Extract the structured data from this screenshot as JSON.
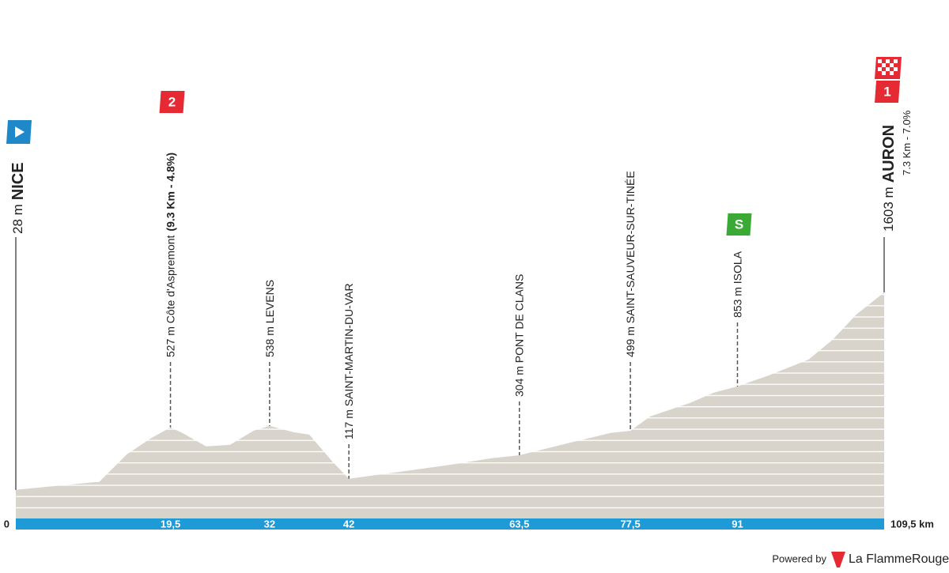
{
  "chart_data": {
    "type": "area",
    "x": [
      0,
      10,
      10.5,
      14,
      17,
      19.5,
      21,
      24,
      27,
      30,
      32,
      35,
      37,
      40,
      42,
      50,
      55,
      60,
      63.5,
      70,
      75,
      77.5,
      80,
      85,
      88,
      91,
      95,
      100,
      103,
      106,
      109.5
    ],
    "values": [
      28,
      90,
      90,
      311,
      438,
      527,
      482,
      375,
      387,
      500,
      538,
      488,
      469,
      248,
      117,
      186,
      230,
      280,
      304,
      406,
      482,
      499,
      614,
      721,
      803,
      853,
      943,
      1068,
      1225,
      1427,
      1603
    ],
    "color": "#d9d4cb",
    "xlim": [
      0,
      109.5
    ],
    "ylim": [
      -200,
      1650
    ],
    "xticks": [
      0,
      {
        "value": 19.5,
        "label": "19,5"
      },
      32,
      42,
      {
        "value": 63.5,
        "label": "63,5"
      },
      {
        "value": 77.5,
        "label": "77,5"
      },
      91,
      {
        "value": 109.5,
        "label": "109,5 km"
      }
    ],
    "start": {
      "label": "28 m",
      "name": "NICE"
    },
    "finish": {
      "label": "1603 m",
      "name": "AURON",
      "climb": "7.3 Km - 7.0%",
      "badge": "1"
    },
    "waypoints": [
      {
        "label": "527 m Côte d'Aspremont",
        "climb": "(9.3 Km - 4.8%)",
        "badge": "2"
      },
      {
        "label": "538 m LEVENS"
      },
      {
        "label": "117 m SAINT-MARTIN-DU-VAR"
      },
      {
        "label": "304 m PONT DE CLANS"
      },
      {
        "label": "499 m SAINT-SAUVEUR-SUR-TINÉE"
      },
      {
        "label": "853 m ISOLA",
        "badge": "S"
      }
    ]
  },
  "footer": {
    "powered_by": "Powered by",
    "brand": "La FlammeRouge"
  }
}
